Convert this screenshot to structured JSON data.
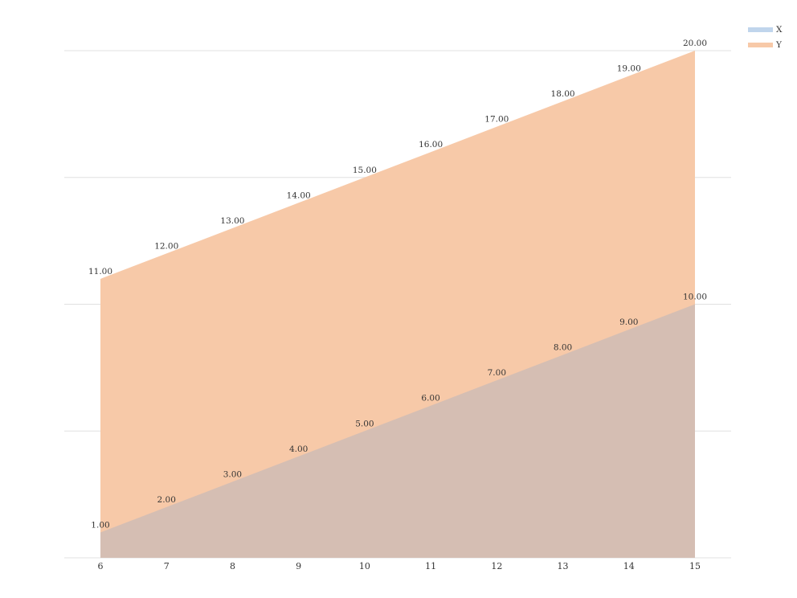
{
  "chart_data": {
    "type": "area",
    "x": [
      6,
      7,
      8,
      9,
      10,
      11,
      12,
      13,
      14,
      15
    ],
    "series": [
      {
        "name": "X",
        "values": [
          1,
          2,
          3,
          4,
          5,
          6,
          7,
          8,
          9,
          10
        ],
        "labels": [
          "1.00",
          "2.00",
          "3.00",
          "4.00",
          "5.00",
          "6.00",
          "7.00",
          "8.00",
          "9.00",
          "10.00"
        ],
        "color": "#c0d5ec"
      },
      {
        "name": "Y",
        "values": [
          11,
          12,
          13,
          14,
          15,
          16,
          17,
          18,
          19,
          20
        ],
        "labels": [
          "11.00",
          "12.00",
          "13.00",
          "14.00",
          "15.00",
          "16.00",
          "17.00",
          "18.00",
          "19.00",
          "20.00"
        ],
        "color": "#f7c9a8"
      }
    ],
    "xticks": [
      "6",
      "7",
      "8",
      "9",
      "10",
      "11",
      "12",
      "13",
      "14",
      "15"
    ],
    "ylim": [
      0,
      20
    ],
    "grid_y": [
      0,
      5,
      10,
      15,
      20
    ],
    "grid": true,
    "legend_position": "top-right",
    "title": "",
    "xlabel": "",
    "ylabel": ""
  }
}
